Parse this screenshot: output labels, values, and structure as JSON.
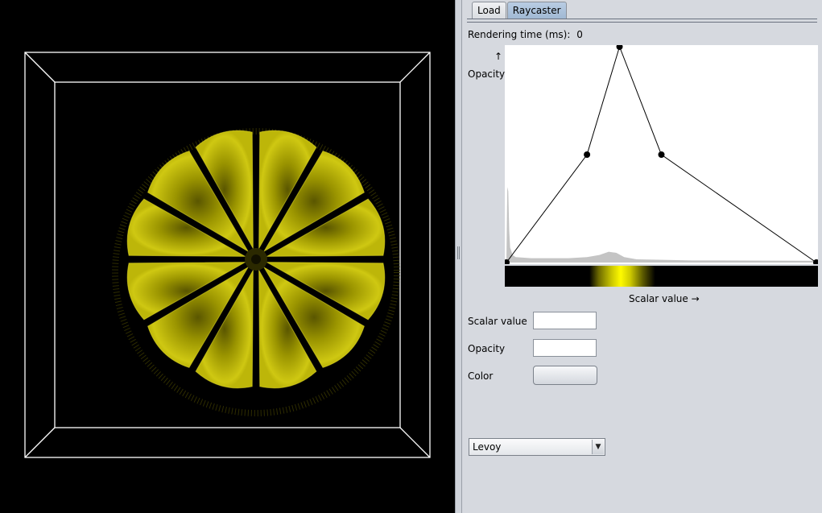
{
  "tabs": [
    {
      "label": "Load",
      "active": false
    },
    {
      "label": "Raycaster",
      "active": true
    }
  ],
  "rendering_time": {
    "label": "Rendering time (ms):",
    "value": "0"
  },
  "transfer_function": {
    "y_arrow": "↑",
    "y_label": "Opacity",
    "x_label": "Scalar value →"
  },
  "chart_data": {
    "type": "line",
    "title": "",
    "xlabel": "Scalar value →",
    "ylabel": "Opacity",
    "xlim": [
      0,
      1
    ],
    "ylim": [
      0,
      1
    ],
    "series": [
      {
        "x": [
          0.0,
          0.26,
          0.365,
          0.5,
          1.0
        ],
        "y": [
          0.0,
          0.5,
          1.0,
          0.5,
          0.0
        ]
      }
    ],
    "histogram_outline": [
      [
        0.0,
        0.0
      ],
      [
        0.003,
        0.35
      ],
      [
        0.006,
        0.33
      ],
      [
        0.009,
        0.15
      ],
      [
        0.012,
        0.07
      ],
      [
        0.02,
        0.035
      ],
      [
        0.03,
        0.025
      ],
      [
        0.08,
        0.02
      ],
      [
        0.2,
        0.02
      ],
      [
        0.26,
        0.025
      ],
      [
        0.3,
        0.035
      ],
      [
        0.33,
        0.05
      ],
      [
        0.355,
        0.045
      ],
      [
        0.38,
        0.025
      ],
      [
        0.42,
        0.015
      ],
      [
        0.6,
        0.01
      ],
      [
        1.0,
        0.008
      ],
      [
        1.0,
        0.0
      ]
    ],
    "colormap": {
      "low": "#000000",
      "mid": "#fffb00",
      "high": "#000000"
    }
  },
  "properties": {
    "scalar_label": "Scalar value",
    "scalar_value": "",
    "opacity_label": "Opacity",
    "opacity_value": "",
    "color_label": "Color",
    "color_button_label": ""
  },
  "method": {
    "selected": "Levoy"
  },
  "colors": {
    "volume": "#e6e000",
    "box": "#ffffff",
    "background": "#000000",
    "panel": "#d6d9df",
    "active_tab": "#a9c0d9"
  }
}
